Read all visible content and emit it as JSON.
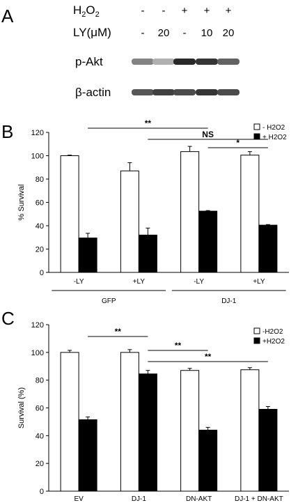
{
  "panels": {
    "a": {
      "letter": "A",
      "h2o2_label": "H",
      "h2o2_sub": "2",
      "h2o2_label2": "O",
      "h2o2_sub2": "2",
      "ly_label": "LY(μM)",
      "h2o2_marks": [
        "-",
        "-",
        "+",
        "+",
        "+"
      ],
      "ly_marks": [
        "-",
        "20",
        "-",
        "10",
        "20"
      ],
      "blot_rows": [
        {
          "label": "p-Akt",
          "intensity": [
            0.55,
            0.35,
            0.95,
            0.9,
            0.7
          ]
        },
        {
          "label": "β-actin",
          "intensity": [
            0.75,
            0.85,
            0.8,
            0.9,
            0.8
          ]
        }
      ]
    }
  },
  "chart_data": [
    {
      "panel": "B",
      "type": "bar",
      "ylabel": "% Survival",
      "ylim": [
        0,
        120
      ],
      "yticks": [
        0,
        20,
        40,
        60,
        80,
        100,
        120
      ],
      "categories": [
        "-LY",
        "+LY",
        "-LY",
        "+LY"
      ],
      "groups": [
        {
          "label": "GFP",
          "span": [
            0,
            1
          ]
        },
        {
          "label": "DJ-1",
          "span": [
            2,
            3
          ]
        }
      ],
      "series": [
        {
          "name": "- H2O2",
          "fill": "#ffffff",
          "values": [
            100,
            87,
            103.5,
            100.5
          ],
          "errors": [
            0.5,
            7,
            4.5,
            3
          ]
        },
        {
          "name": "+ H2O2",
          "fill": "#000000",
          "values": [
            29.5,
            32,
            52.5,
            40.5
          ],
          "errors": [
            4,
            6,
            0.5,
            0.5
          ]
        }
      ],
      "legend_position": "top-right",
      "significance": [
        {
          "label": "**",
          "from": [
            0,
            1
          ],
          "to": [
            2,
            1
          ]
        },
        {
          "label": "NS",
          "from": [
            1,
            1
          ],
          "to": [
            3,
            1
          ]
        },
        {
          "label": "*",
          "from": [
            2,
            1
          ],
          "to": [
            3,
            1
          ]
        }
      ]
    },
    {
      "panel": "C",
      "type": "bar",
      "ylabel": "Survival (%)",
      "ylim": [
        0,
        120
      ],
      "yticks": [
        0,
        20,
        40,
        60,
        80,
        100,
        120
      ],
      "categories": [
        "EV",
        "DJ-1",
        "DN-AKT",
        "DJ-1 + DN-AKT"
      ],
      "series": [
        {
          "name": "-H2O2",
          "fill": "#ffffff",
          "values": [
            100,
            100,
            87,
            87.5
          ],
          "errors": [
            1.5,
            2,
            1.5,
            1.5
          ]
        },
        {
          "name": "+H2O2",
          "fill": "#000000",
          "values": [
            51.5,
            84.5,
            44,
            59
          ],
          "errors": [
            2,
            2.5,
            2,
            2
          ]
        }
      ],
      "legend_position": "top-right",
      "significance": [
        {
          "label": "**",
          "from": [
            0,
            1
          ],
          "to": [
            1,
            1
          ]
        },
        {
          "label": "**",
          "from": [
            1,
            1
          ],
          "to": [
            2,
            1
          ]
        },
        {
          "label": "**",
          "from": [
            1,
            1
          ],
          "to": [
            3,
            1
          ]
        }
      ]
    }
  ]
}
